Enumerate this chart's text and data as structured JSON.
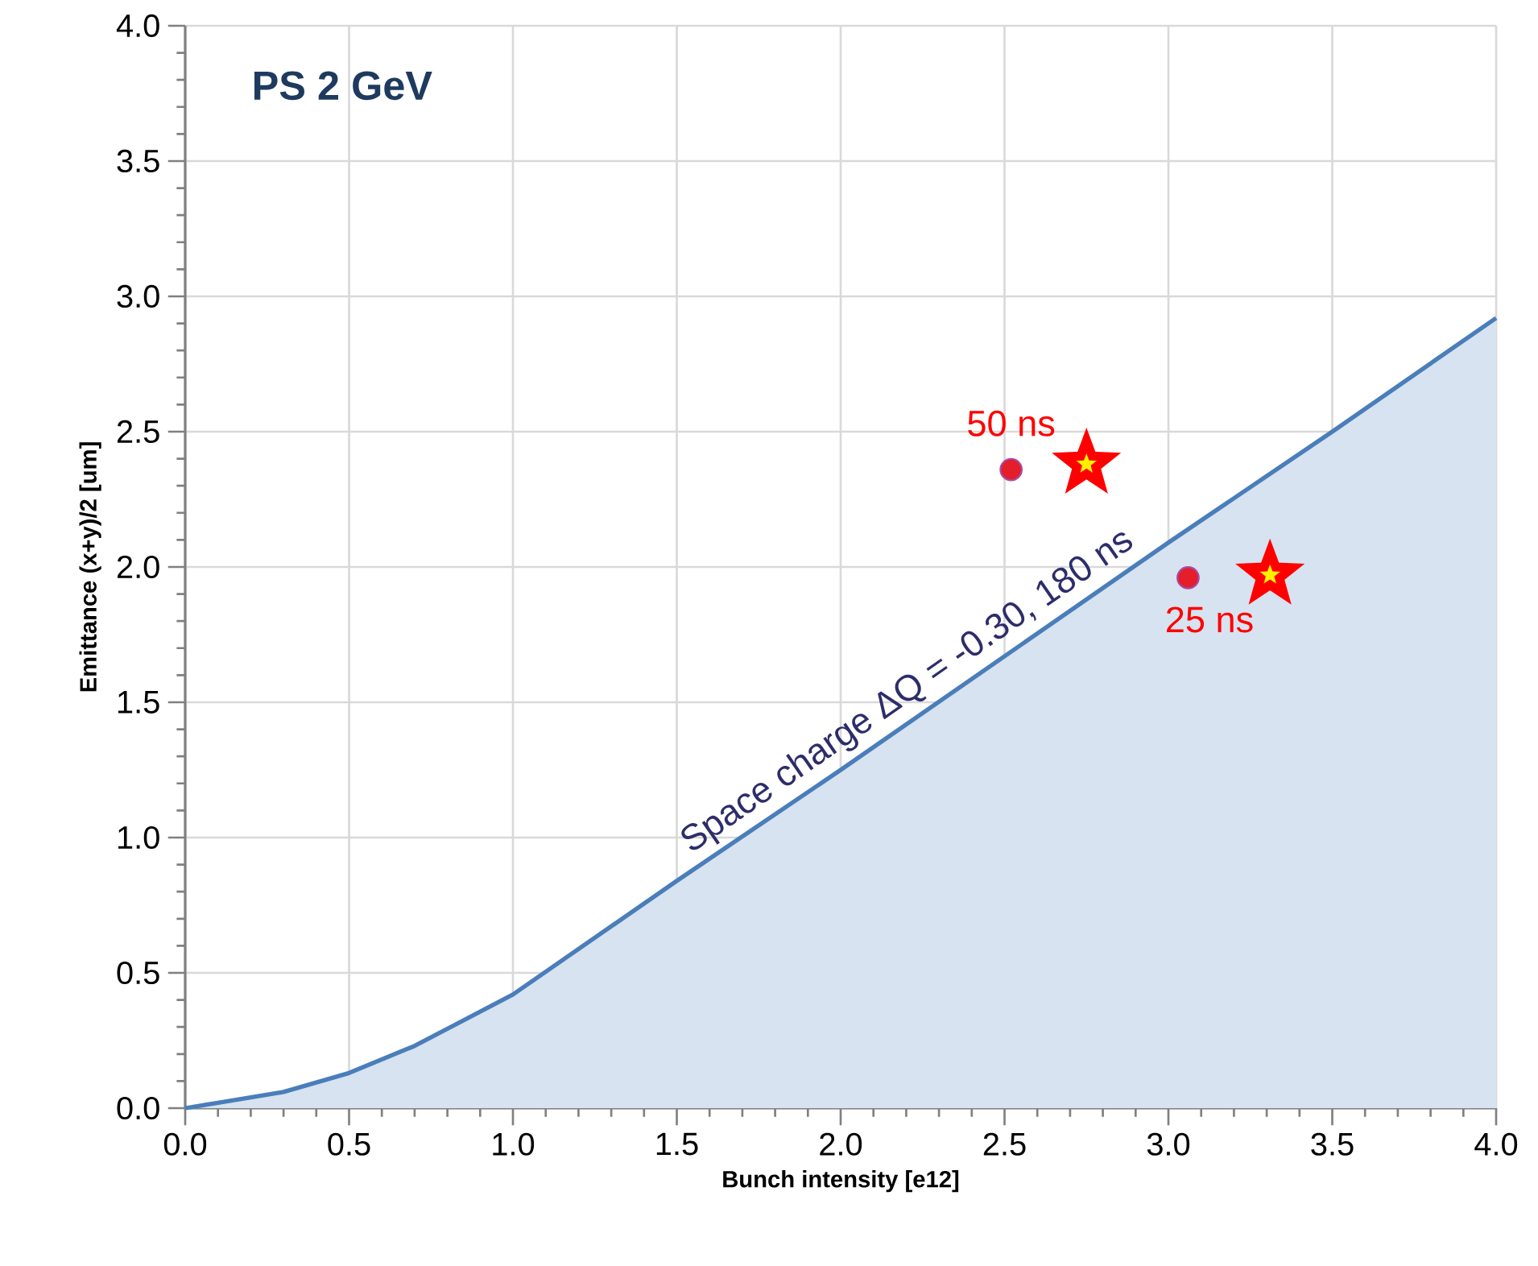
{
  "chart_data": {
    "type": "area",
    "xlabel": "Bunch intensity [e12]",
    "ylabel": "Emittance (x+y)/2 [um]",
    "xlim": [
      0,
      4
    ],
    "ylim": [
      0,
      4
    ],
    "xticks": [
      {
        "value": 0,
        "label": "0.0"
      },
      {
        "value": 0.5,
        "label": "0.5"
      },
      {
        "value": 1,
        "label": "1.0"
      },
      {
        "value": 1.5,
        "label": "1.5"
      },
      {
        "value": 2,
        "label": "2.0"
      },
      {
        "value": 2.5,
        "label": "2.5"
      },
      {
        "value": 3,
        "label": "3.0"
      },
      {
        "value": 3.5,
        "label": "3.5"
      },
      {
        "value": 4,
        "label": "4.0"
      }
    ],
    "yticks": [
      {
        "value": 0,
        "label": "0.0"
      },
      {
        "value": 0.5,
        "label": "0.5"
      },
      {
        "value": 1,
        "label": "1.0"
      },
      {
        "value": 1.5,
        "label": "1.5"
      },
      {
        "value": 2,
        "label": "2.0"
      },
      {
        "value": 2.5,
        "label": "2.5"
      },
      {
        "value": 3,
        "label": "3.0"
      },
      {
        "value": 3.5,
        "label": "3.5"
      },
      {
        "value": 4,
        "label": "4.0"
      }
    ],
    "grid": true,
    "series": [
      {
        "name": "Space charge ΔQ = -0.30, 180 ns",
        "color": "#4a7ebb",
        "x": [
          0,
          0.1,
          0.3,
          0.5,
          0.7,
          1.0,
          1.5,
          2.0,
          2.5,
          3.0,
          3.5,
          4.0
        ],
        "values": [
          0,
          0.02,
          0.06,
          0.13,
          0.23,
          0.42,
          0.84,
          1.25,
          1.67,
          2.09,
          2.5,
          2.92
        ]
      },
      {
        "type": "scatter",
        "marker": "circle",
        "color": "#e41e2b",
        "x": [
          2.52,
          3.06
        ],
        "values": [
          2.36,
          1.96
        ]
      },
      {
        "type": "scatter",
        "marker": "star",
        "color": "#ff0000",
        "x": [
          2.75,
          3.31
        ],
        "values": [
          2.38,
          1.97
        ]
      }
    ],
    "annotations": [
      "PS 2 GeV",
      {
        "text": "50 ns",
        "x": 2.52,
        "y": 2.36
      },
      {
        "text": "25 ns",
        "x": 3.06,
        "y": 1.96
      }
    ]
  }
}
